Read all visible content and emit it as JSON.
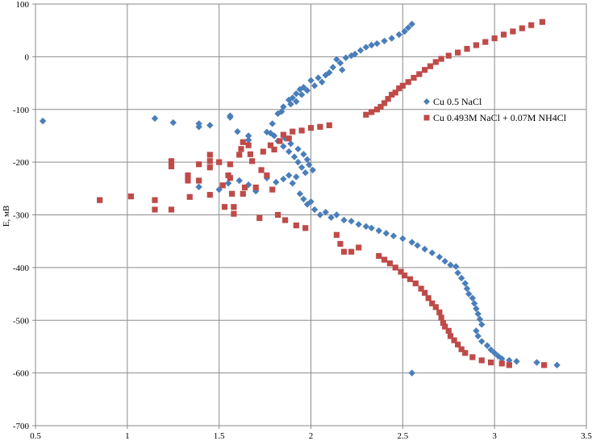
{
  "chart_data": {
    "type": "scatter",
    "title": "",
    "xlabel": "",
    "ylabel": "E, мВ",
    "xlim": [
      0.5,
      3.5
    ],
    "ylim": [
      -700,
      100
    ],
    "x_ticks": [
      "0.5",
      "1",
      "1.5",
      "2",
      "2.5",
      "3",
      "3.5"
    ],
    "y_ticks": [
      "100",
      "0",
      "-100",
      "-200",
      "-300",
      "-400",
      "-500",
      "-600",
      "-700"
    ],
    "grid": true,
    "legend_position": "right",
    "series": [
      {
        "name": "Cu 0.5 NaCl",
        "marker": "diamond",
        "color": "#4a7ebb",
        "points": [
          [
            0.54,
            -122
          ],
          [
            1.15,
            -117
          ],
          [
            1.25,
            -125
          ],
          [
            1.39,
            -127
          ],
          [
            1.39,
            -133
          ],
          [
            1.45,
            -130
          ],
          [
            1.56,
            -112
          ],
          [
            1.56,
            -115
          ],
          [
            1.6,
            -142
          ],
          [
            1.66,
            -150
          ],
          [
            1.66,
            -158
          ],
          [
            1.76,
            -143
          ],
          [
            1.79,
            -127
          ],
          [
            1.8,
            -150
          ],
          [
            1.82,
            -108
          ],
          [
            1.84,
            -104
          ],
          [
            1.85,
            -95
          ],
          [
            1.88,
            -82
          ],
          [
            1.89,
            -90
          ],
          [
            1.9,
            -78
          ],
          [
            1.92,
            -70
          ],
          [
            1.92,
            -85
          ],
          [
            1.94,
            -62
          ],
          [
            1.95,
            -72
          ],
          [
            1.96,
            -58
          ],
          [
            1.98,
            -64
          ],
          [
            2.0,
            -45
          ],
          [
            2.02,
            -55
          ],
          [
            2.04,
            -40
          ],
          [
            2.06,
            -48
          ],
          [
            2.08,
            -35
          ],
          [
            2.1,
            -30
          ],
          [
            2.12,
            -20
          ],
          [
            2.14,
            -5
          ],
          [
            2.16,
            -12
          ],
          [
            2.17,
            -25
          ],
          [
            2.19,
            -2
          ],
          [
            2.22,
            2
          ],
          [
            2.24,
            5
          ],
          [
            2.27,
            12
          ],
          [
            2.3,
            18
          ],
          [
            2.33,
            22
          ],
          [
            2.36,
            25
          ],
          [
            2.4,
            30
          ],
          [
            2.44,
            35
          ],
          [
            2.48,
            42
          ],
          [
            2.51,
            48
          ],
          [
            2.53,
            55
          ],
          [
            2.55,
            62
          ],
          [
            2.55,
            -600
          ],
          [
            1.78,
            -145
          ],
          [
            1.82,
            -160
          ],
          [
            1.85,
            -170
          ],
          [
            1.88,
            -180
          ],
          [
            1.91,
            -190
          ],
          [
            1.93,
            -200
          ],
          [
            1.95,
            -210
          ],
          [
            1.97,
            -220
          ],
          [
            1.99,
            -205
          ],
          [
            2.01,
            -215
          ],
          [
            1.96,
            -185
          ],
          [
            1.98,
            -195
          ],
          [
            1.93,
            -175
          ],
          [
            1.89,
            -165
          ],
          [
            1.86,
            -155
          ],
          [
            1.39,
            -247
          ],
          [
            1.5,
            -252
          ],
          [
            1.55,
            -240
          ],
          [
            1.61,
            -235
          ],
          [
            1.66,
            -243
          ],
          [
            1.7,
            -255
          ],
          [
            1.76,
            -230
          ],
          [
            1.81,
            -238
          ],
          [
            1.85,
            -232
          ],
          [
            1.88,
            -225
          ],
          [
            1.9,
            -240
          ],
          [
            1.92,
            -228
          ],
          [
            1.94,
            -260
          ],
          [
            1.96,
            -270
          ],
          [
            1.98,
            -280
          ],
          [
            2.0,
            -275
          ],
          [
            2.02,
            -290
          ],
          [
            2.05,
            -300
          ],
          [
            2.08,
            -295
          ],
          [
            2.11,
            -305
          ],
          [
            2.14,
            -300
          ],
          [
            2.18,
            -310
          ],
          [
            2.22,
            -312
          ],
          [
            2.26,
            -318
          ],
          [
            2.3,
            -322
          ],
          [
            2.33,
            -325
          ],
          [
            2.37,
            -330
          ],
          [
            2.41,
            -335
          ],
          [
            2.45,
            -340
          ],
          [
            2.5,
            -345
          ],
          [
            2.55,
            -352
          ],
          [
            2.58,
            -358
          ],
          [
            2.62,
            -365
          ],
          [
            2.66,
            -372
          ],
          [
            2.7,
            -380
          ],
          [
            2.73,
            -388
          ],
          [
            2.76,
            -395
          ],
          [
            2.79,
            -398
          ],
          [
            2.8,
            -410
          ],
          [
            2.82,
            -420
          ],
          [
            2.84,
            -430
          ],
          [
            2.85,
            -440
          ],
          [
            2.86,
            -450
          ],
          [
            2.88,
            -458
          ],
          [
            2.89,
            -468
          ],
          [
            2.9,
            -478
          ],
          [
            2.91,
            -488
          ],
          [
            2.92,
            -498
          ],
          [
            2.93,
            -508
          ],
          [
            2.9,
            -520
          ],
          [
            2.91,
            -530
          ],
          [
            2.93,
            -540
          ],
          [
            2.96,
            -548
          ],
          [
            2.98,
            -556
          ],
          [
            3.0,
            -562
          ],
          [
            3.02,
            -568
          ],
          [
            3.04,
            -573
          ],
          [
            3.08,
            -576
          ],
          [
            3.12,
            -578
          ],
          [
            3.23,
            -580
          ],
          [
            3.34,
            -585
          ]
        ]
      },
      {
        "name": "Cu 0.493M NaCl + 0.07M NH4Cl",
        "marker": "square",
        "color": "#be4b48",
        "points": [
          [
            0.85,
            -272
          ],
          [
            1.02,
            -265
          ],
          [
            1.15,
            -272
          ],
          [
            1.15,
            -290
          ],
          [
            1.24,
            -290
          ],
          [
            1.24,
            -198
          ],
          [
            1.24,
            -208
          ],
          [
            1.33,
            -225
          ],
          [
            1.33,
            -235
          ],
          [
            1.34,
            -266
          ],
          [
            1.39,
            -235
          ],
          [
            1.39,
            -204
          ],
          [
            1.45,
            -186
          ],
          [
            1.45,
            -198
          ],
          [
            1.45,
            -210
          ],
          [
            1.45,
            -262
          ],
          [
            1.5,
            -200
          ],
          [
            1.52,
            -244
          ],
          [
            1.53,
            -285
          ],
          [
            1.55,
            -225
          ],
          [
            1.56,
            -204
          ],
          [
            1.56,
            -230
          ],
          [
            1.57,
            -260
          ],
          [
            1.58,
            -285
          ],
          [
            1.58,
            -298
          ],
          [
            1.61,
            -186
          ],
          [
            1.62,
            -175
          ],
          [
            1.63,
            -162
          ],
          [
            1.63,
            -260
          ],
          [
            1.64,
            -248
          ],
          [
            1.66,
            -168
          ],
          [
            1.67,
            -185
          ],
          [
            1.68,
            -198
          ],
          [
            1.7,
            -248
          ],
          [
            1.72,
            -306
          ],
          [
            1.73,
            -215
          ],
          [
            1.74,
            -180
          ],
          [
            1.76,
            -225
          ],
          [
            1.78,
            -168
          ],
          [
            1.79,
            -252
          ],
          [
            1.8,
            -176
          ],
          [
            1.82,
            -300
          ],
          [
            1.83,
            -160
          ],
          [
            1.85,
            -148
          ],
          [
            1.86,
            -310
          ],
          [
            1.88,
            -155
          ],
          [
            1.9,
            -142
          ],
          [
            1.92,
            -320
          ],
          [
            1.95,
            -140
          ],
          [
            1.97,
            -325
          ],
          [
            2.0,
            -135
          ],
          [
            2.05,
            -133
          ],
          [
            2.1,
            -130
          ],
          [
            2.14,
            -338
          ],
          [
            2.16,
            -355
          ],
          [
            2.18,
            -370
          ],
          [
            2.22,
            -370
          ],
          [
            2.26,
            -362
          ],
          [
            2.3,
            -110
          ],
          [
            2.33,
            -105
          ],
          [
            2.36,
            -100
          ],
          [
            2.38,
            -95
          ],
          [
            2.4,
            -88
          ],
          [
            2.42,
            -80
          ],
          [
            2.44,
            -72
          ],
          [
            2.46,
            -68
          ],
          [
            2.48,
            -60
          ],
          [
            2.5,
            -55
          ],
          [
            2.53,
            -48
          ],
          [
            2.56,
            -40
          ],
          [
            2.59,
            -33
          ],
          [
            2.62,
            -25
          ],
          [
            2.65,
            -18
          ],
          [
            2.68,
            -10
          ],
          [
            2.71,
            -4
          ],
          [
            2.75,
            2
          ],
          [
            2.8,
            8
          ],
          [
            2.85,
            15
          ],
          [
            2.9,
            22
          ],
          [
            2.95,
            28
          ],
          [
            3.0,
            35
          ],
          [
            3.05,
            42
          ],
          [
            3.1,
            48
          ],
          [
            3.15,
            54
          ],
          [
            3.2,
            60
          ],
          [
            3.26,
            66
          ],
          [
            2.37,
            -378
          ],
          [
            2.4,
            -385
          ],
          [
            2.43,
            -392
          ],
          [
            2.46,
            -400
          ],
          [
            2.49,
            -408
          ],
          [
            2.51,
            -415
          ],
          [
            2.54,
            -422
          ],
          [
            2.57,
            -430
          ],
          [
            2.6,
            -440
          ],
          [
            2.62,
            -448
          ],
          [
            2.64,
            -458
          ],
          [
            2.66,
            -468
          ],
          [
            2.68,
            -475
          ],
          [
            2.7,
            -485
          ],
          [
            2.71,
            -495
          ],
          [
            2.72,
            -505
          ],
          [
            2.73,
            -512
          ],
          [
            2.75,
            -520
          ],
          [
            2.76,
            -530
          ],
          [
            2.78,
            -538
          ],
          [
            2.8,
            -546
          ],
          [
            2.82,
            -555
          ],
          [
            2.84,
            -562
          ],
          [
            2.88,
            -570
          ],
          [
            2.93,
            -576
          ],
          [
            2.98,
            -580
          ],
          [
            3.04,
            -582
          ],
          [
            3.08,
            -585
          ],
          [
            3.27,
            -585
          ]
        ]
      }
    ]
  }
}
